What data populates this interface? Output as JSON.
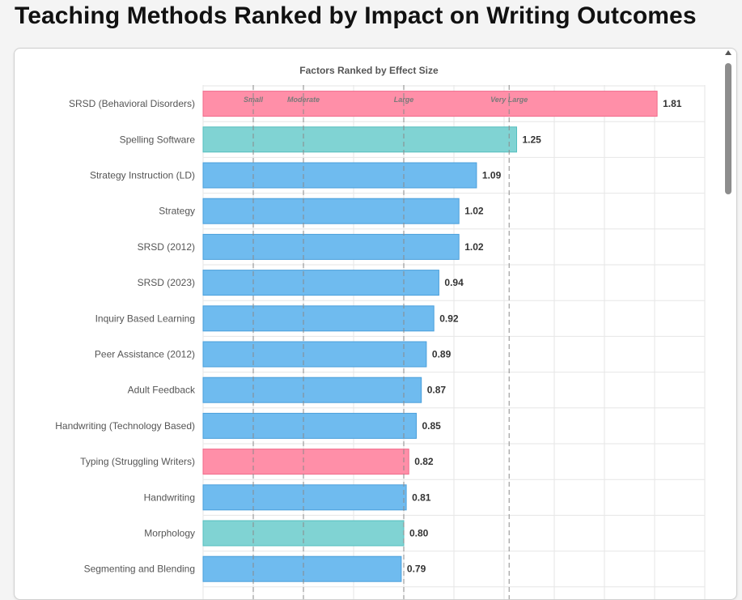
{
  "page": {
    "title": "Teaching Methods Ranked by Impact on Writing Outcomes"
  },
  "chart_data": {
    "type": "bar",
    "orientation": "horizontal",
    "title": "Factors Ranked by Effect Size",
    "xlabel": "",
    "ylabel": "",
    "xlim": [
      0,
      2.0
    ],
    "grid": true,
    "categories": [
      "SRSD (Behavioral Disorders)",
      "Spelling Software",
      "Strategy Instruction (LD)",
      "Strategy",
      "SRSD (2012)",
      "SRSD (2023)",
      "Inquiry Based Learning",
      "Peer Assistance (2012)",
      "Adult Feedback",
      "Handwriting (Technology Based)",
      "Typing (Struggling Writers)",
      "Handwriting",
      "Morphology",
      "Segmenting and Blending"
    ],
    "values": [
      1.81,
      1.25,
      1.09,
      1.02,
      1.02,
      0.94,
      0.92,
      0.89,
      0.87,
      0.85,
      0.82,
      0.81,
      0.8,
      0.79
    ],
    "value_labels": [
      "1.81",
      "1.25",
      "1.09",
      "1.02",
      "1.02",
      "0.94",
      "0.92",
      "0.89",
      "0.87",
      "0.85",
      "0.82",
      "0.81",
      "0.80",
      "0.79"
    ],
    "bar_groups": [
      "pink",
      "teal",
      "blue",
      "blue",
      "blue",
      "blue",
      "blue",
      "blue",
      "blue",
      "blue",
      "pink",
      "blue",
      "teal",
      "blue"
    ],
    "colors": {
      "pink": {
        "fill": "#ff8fa8",
        "stroke": "#f06a8a"
      },
      "teal": {
        "fill": "#80d3d3",
        "stroke": "#55bfbf"
      },
      "blue": {
        "fill": "#6fbbef",
        "stroke": "#4a9fdb"
      }
    },
    "thresholds": [
      {
        "label": "Small",
        "value": 0.2
      },
      {
        "label": "Moderate",
        "value": 0.4
      },
      {
        "label": "Large",
        "value": 0.8
      },
      {
        "label": "Very Large",
        "value": 1.22
      }
    ]
  }
}
